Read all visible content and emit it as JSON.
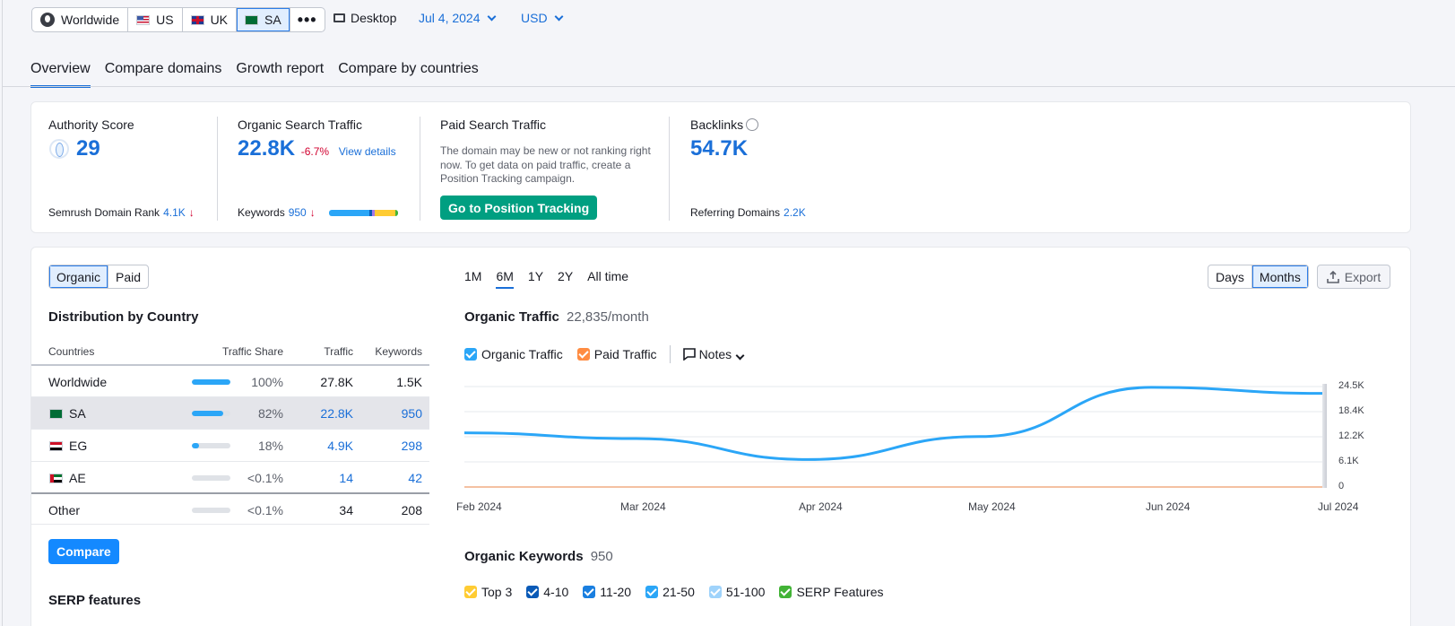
{
  "db_selector": {
    "items": [
      {
        "label": "Worldwide",
        "icon": "globe-icon",
        "active": false
      },
      {
        "label": "US",
        "icon": "flag-us-icon",
        "active": false
      },
      {
        "label": "UK",
        "icon": "flag-uk-icon",
        "active": false
      },
      {
        "label": "SA",
        "icon": "flag-sa-icon",
        "active": true
      }
    ],
    "more_label": "•••"
  },
  "device": {
    "label": "Desktop",
    "icon": "desktop-icon"
  },
  "date": {
    "label": "Jul 4, 2024"
  },
  "currency": {
    "label": "USD"
  },
  "tabs": [
    "Overview",
    "Compare domains",
    "Growth report",
    "Compare by countries"
  ],
  "metrics": {
    "authority": {
      "label": "Authority Score",
      "value": "29",
      "sub_label": "Semrush Domain Rank",
      "sub_value": "4.1K",
      "sub_arrow": "↓"
    },
    "organic": {
      "label": "Organic Search Traffic",
      "value": "22.8K",
      "change": "-6.7%",
      "link": "View details",
      "sub_label": "Keywords",
      "sub_value": "950",
      "sub_arrow": "↓"
    },
    "paid": {
      "label": "Paid Search Traffic",
      "text": "The domain may be new or not ranking right now. To get data on paid traffic, create a Position Tracking campaign.",
      "button": "Go to Position Tracking"
    },
    "backlinks": {
      "label": "Backlinks",
      "value": "54.7K",
      "sub_label": "Referring Domains",
      "sub_value": "2.2K"
    }
  },
  "left_panel": {
    "toggle": [
      "Organic",
      "Paid"
    ],
    "title": "Distribution by Country",
    "columns": [
      "Countries",
      "Traffic Share",
      "Traffic",
      "Keywords"
    ],
    "rows": [
      {
        "country": "Worldwide",
        "share": "100%",
        "share_frac": 1.0,
        "traffic": "27.8K",
        "keywords": "1.5K"
      },
      {
        "country": "SA",
        "share": "82%",
        "share_frac": 0.82,
        "traffic": "22.8K",
        "keywords": "950"
      },
      {
        "country": "EG",
        "share": "18%",
        "share_frac": 0.18,
        "traffic": "4.9K",
        "keywords": "298"
      },
      {
        "country": "AE",
        "share": "<0.1%",
        "share_frac": 0.0,
        "traffic": "14",
        "keywords": "42"
      },
      {
        "country": "Other",
        "share": "<0.1%",
        "share_frac": 0.0,
        "traffic": "34",
        "keywords": "208"
      }
    ],
    "compare_button": "Compare",
    "serp_title": "SERP features"
  },
  "chart_panel": {
    "ranges": [
      "1M",
      "6M",
      "1Y",
      "2Y",
      "All time"
    ],
    "active_range": "6M",
    "granularity": [
      "Days",
      "Months"
    ],
    "export_label": "Export",
    "title": "Organic Traffic",
    "subtitle": "22,835/month",
    "legend": [
      {
        "label": "Organic Traffic",
        "color": "#2ba6f7"
      },
      {
        "label": "Paid Traffic",
        "color": "#ff8c42"
      }
    ],
    "notes_label": "Notes",
    "keywords_title": "Organic Keywords",
    "keywords_value": "950",
    "keyword_legend": [
      {
        "label": "Top 3",
        "color": "#ffcc33"
      },
      {
        "label": "4-10",
        "color": "#0a5ab7"
      },
      {
        "label": "11-20",
        "color": "#1a7fe0"
      },
      {
        "label": "21-50",
        "color": "#2ba6f7"
      },
      {
        "label": "51-100",
        "color": "#9fd3fb"
      },
      {
        "label": "SERP Features",
        "color": "#42b336"
      }
    ]
  },
  "chart_data": {
    "type": "line",
    "x": [
      "Feb 2024",
      "Mar 2024",
      "Apr 2024",
      "May 2024",
      "Jun 2024",
      "Jul 2024"
    ],
    "y_ticks": [
      "24.5K",
      "18.4K",
      "12.2K",
      "6.1K",
      "0"
    ],
    "ylim": [
      0,
      24500
    ],
    "series": [
      {
        "name": "Organic Traffic",
        "values": [
          13200,
          11800,
          6700,
          12300,
          24300,
          22835
        ]
      },
      {
        "name": "Paid Traffic",
        "values": [
          0,
          0,
          0,
          0,
          0,
          0
        ]
      }
    ],
    "grid": true
  }
}
